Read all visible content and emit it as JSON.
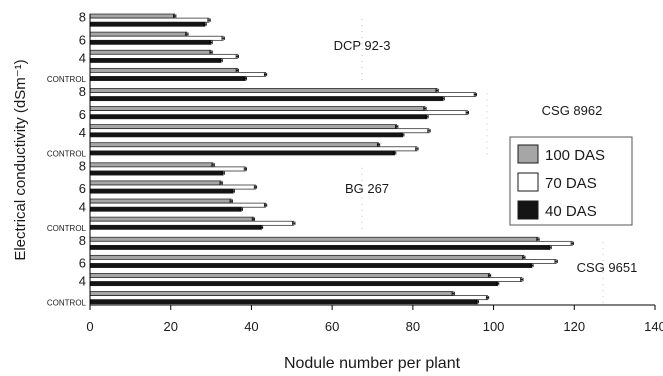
{
  "chart_data": {
    "type": "bar",
    "orientation": "horizontal",
    "xlabel": "Nodule number per plant",
    "ylabel": "Electrical conductivity (dSm⁻¹)",
    "xlim": [
      0,
      140
    ],
    "xticks": [
      "0",
      "20",
      "40",
      "60",
      "80",
      "100",
      "120",
      "140"
    ],
    "grid": false,
    "legend_position": "right",
    "series": [
      {
        "name": "100 DAS",
        "color": "#a6a6a6"
      },
      {
        "name": "70 DAS",
        "color": "#ffffff"
      },
      {
        "name": "40 DAS",
        "color": "#141414"
      }
    ],
    "groups": [
      {
        "name": "DCP 92-3",
        "categories": [
          {
            "label": "8",
            "values": [
              21,
              29.5,
              28.5
            ]
          },
          {
            "label": "6",
            "values": [
              24,
              33,
              30
            ]
          },
          {
            "label": "4",
            "values": [
              30,
              36.5,
              32.5
            ]
          },
          {
            "label": "CONTROL",
            "values": [
              36.5,
              43.5,
              38.5
            ]
          }
        ]
      },
      {
        "name": "CSG 8962",
        "categories": [
          {
            "label": "8",
            "values": [
              86,
              95.5,
              87.5
            ]
          },
          {
            "label": "6",
            "values": [
              83,
              93.5,
              83.5
            ]
          },
          {
            "label": "4",
            "values": [
              76,
              84,
              77.5
            ]
          },
          {
            "label": "CONTROL",
            "values": [
              71.5,
              81,
              75.5
            ]
          }
        ]
      },
      {
        "name": "BG 267",
        "categories": [
          {
            "label": "8",
            "values": [
              30.5,
              38.5,
              33
            ]
          },
          {
            "label": "6",
            "values": [
              32.5,
              41,
              35.5
            ]
          },
          {
            "label": "4",
            "values": [
              35,
              43.5,
              37.5
            ]
          },
          {
            "label": "CONTROL",
            "values": [
              40.5,
              50.5,
              42.5
            ]
          }
        ]
      },
      {
        "name": "CSG 9651",
        "categories": [
          {
            "label": "8",
            "values": [
              111,
              119.5,
              114
            ]
          },
          {
            "label": "6",
            "values": [
              107.5,
              115.5,
              109.5
            ]
          },
          {
            "label": "4",
            "values": [
              99,
              107,
              101
            ]
          },
          {
            "label": "CONTROL",
            "values": [
              90,
              98.5,
              96
            ]
          }
        ]
      }
    ]
  }
}
